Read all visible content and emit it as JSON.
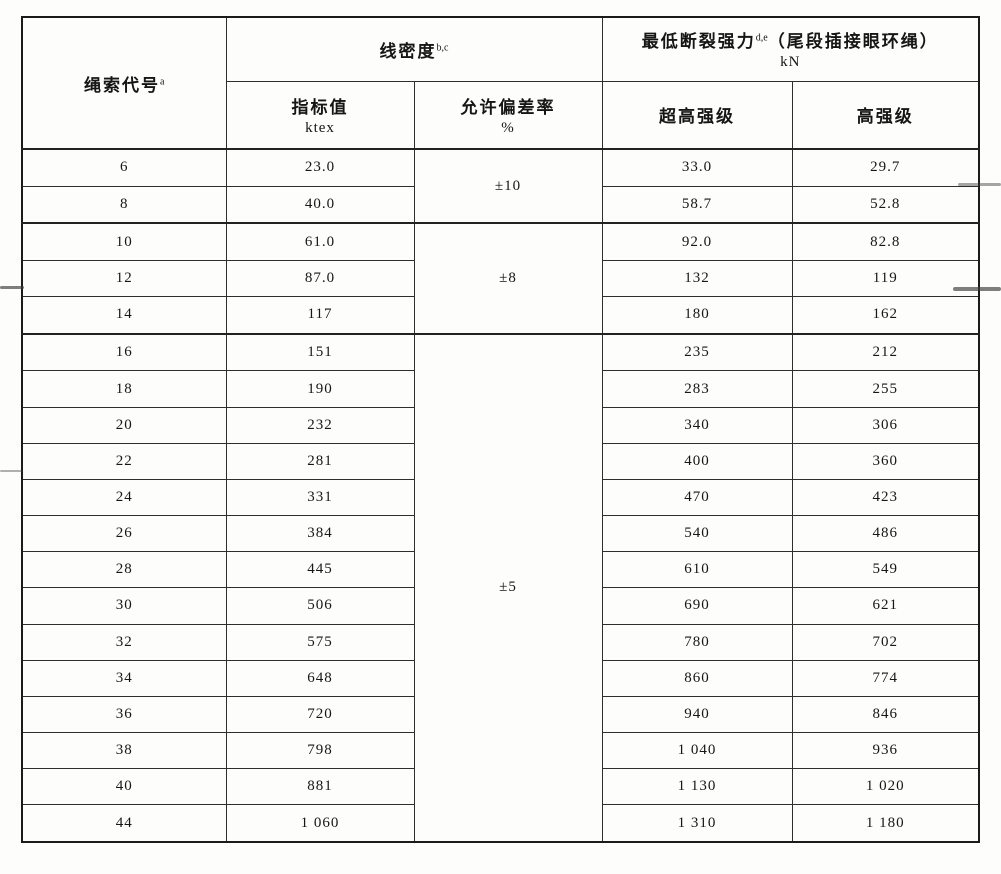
{
  "table": {
    "header": {
      "rope_code": "绳索代号",
      "rope_code_sup": "a",
      "linear_density": "线密度",
      "linear_density_sup": "b,c",
      "min_break": "最低断裂强力",
      "min_break_sup": "d,e",
      "min_break_paren": "（尾段插接眼环绳）",
      "min_break_unit": "kN",
      "sub_index_value": "指标值",
      "sub_index_unit": "ktex",
      "sub_deviation": "允许偏差率",
      "sub_deviation_unit": "%",
      "sub_ultra_high": "超高强级",
      "sub_high": "高强级"
    },
    "groups": [
      {
        "deviation": "±10",
        "rows": [
          {
            "code": "6",
            "ktex": "23.0",
            "ultra": "33.0",
            "high": "29.7"
          },
          {
            "code": "8",
            "ktex": "40.0",
            "ultra": "58.7",
            "high": "52.8"
          }
        ]
      },
      {
        "deviation": "±8",
        "rows": [
          {
            "code": "10",
            "ktex": "61.0",
            "ultra": "92.0",
            "high": "82.8"
          },
          {
            "code": "12",
            "ktex": "87.0",
            "ultra": "132",
            "high": "119"
          },
          {
            "code": "14",
            "ktex": "117",
            "ultra": "180",
            "high": "162"
          }
        ]
      },
      {
        "deviation": "±5",
        "rows": [
          {
            "code": "16",
            "ktex": "151",
            "ultra": "235",
            "high": "212"
          },
          {
            "code": "18",
            "ktex": "190",
            "ultra": "283",
            "high": "255"
          },
          {
            "code": "20",
            "ktex": "232",
            "ultra": "340",
            "high": "306"
          },
          {
            "code": "22",
            "ktex": "281",
            "ultra": "400",
            "high": "360"
          },
          {
            "code": "24",
            "ktex": "331",
            "ultra": "470",
            "high": "423"
          },
          {
            "code": "26",
            "ktex": "384",
            "ultra": "540",
            "high": "486"
          },
          {
            "code": "28",
            "ktex": "445",
            "ultra": "610",
            "high": "549"
          },
          {
            "code": "30",
            "ktex": "506",
            "ultra": "690",
            "high": "621"
          },
          {
            "code": "32",
            "ktex": "575",
            "ultra": "780",
            "high": "702"
          },
          {
            "code": "34",
            "ktex": "648",
            "ultra": "860",
            "high": "774"
          },
          {
            "code": "36",
            "ktex": "720",
            "ultra": "940",
            "high": "846"
          },
          {
            "code": "38",
            "ktex": "798",
            "ultra": "1 040",
            "high": "936"
          },
          {
            "code": "40",
            "ktex": "881",
            "ultra": "1 130",
            "high": "1 020"
          },
          {
            "code": "44",
            "ktex": "1 060",
            "ultra": "1 310",
            "high": "1 180"
          }
        ]
      }
    ]
  }
}
